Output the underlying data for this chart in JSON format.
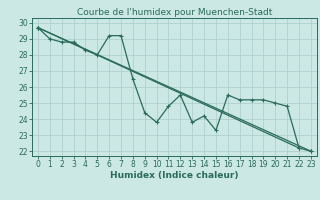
{
  "title": "Courbe de l'humidex pour Muenchen-Stadt",
  "xlabel": "Humidex (Indice chaleur)",
  "x_values": [
    0,
    1,
    2,
    3,
    4,
    5,
    6,
    7,
    8,
    9,
    10,
    11,
    12,
    13,
    14,
    15,
    16,
    17,
    18,
    19,
    20,
    21,
    22,
    23
  ],
  "line1_x": [
    0,
    1,
    2,
    3,
    4,
    5,
    6,
    7,
    8,
    9,
    10,
    11,
    12,
    13,
    14,
    15,
    16,
    17,
    18,
    19,
    20,
    21,
    22,
    23
  ],
  "line1_y": [
    29.7,
    29.0,
    28.8,
    28.8,
    28.3,
    28.0,
    29.2,
    29.2,
    26.5,
    24.4,
    23.8,
    24.8,
    25.5,
    23.8,
    24.2,
    23.3,
    25.5,
    25.2,
    25.2,
    25.2,
    25.0,
    24.8,
    22.2,
    22.0
  ],
  "line2_x": [
    0,
    22
  ],
  "line2_y": [
    29.7,
    22.2
  ],
  "line3_x": [
    0,
    23
  ],
  "line3_y": [
    29.7,
    22.0
  ],
  "line_color": "#2a6b5a",
  "bg_color": "#cce8e4",
  "grid_color_major": "#aaccca",
  "grid_color_minor": "#c4deda",
  "ylim": [
    21.7,
    30.3
  ],
  "xlim": [
    -0.5,
    23.5
  ],
  "yticks": [
    22,
    23,
    24,
    25,
    26,
    27,
    28,
    29,
    30
  ],
  "xticks": [
    0,
    1,
    2,
    3,
    4,
    5,
    6,
    7,
    8,
    9,
    10,
    11,
    12,
    13,
    14,
    15,
    16,
    17,
    18,
    19,
    20,
    21,
    22,
    23
  ],
  "title_fontsize": 6.5,
  "label_fontsize": 6.5,
  "tick_fontsize": 5.5,
  "linewidth": 0.9,
  "markersize": 2.5,
  "markeredgewidth": 0.8
}
